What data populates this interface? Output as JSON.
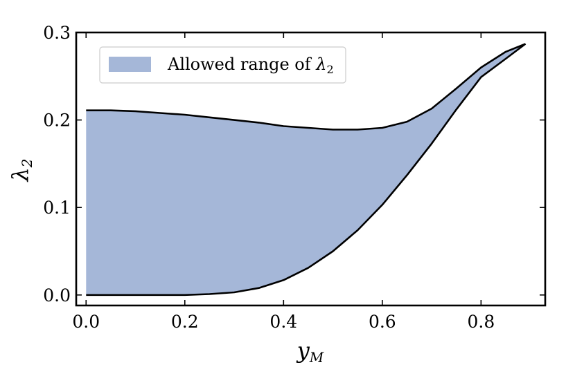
{
  "chart_data": {
    "type": "area",
    "x": [
      0.0,
      0.05,
      0.1,
      0.15,
      0.2,
      0.25,
      0.3,
      0.35,
      0.4,
      0.45,
      0.5,
      0.55,
      0.6,
      0.65,
      0.7,
      0.75,
      0.8,
      0.85,
      0.89
    ],
    "series": [
      {
        "name": "Allowed range of λ2",
        "lower": [
          0.0,
          0.0,
          0.0,
          0.0,
          0.0,
          0.001,
          0.003,
          0.008,
          0.017,
          0.031,
          0.05,
          0.074,
          0.103,
          0.137,
          0.173,
          0.212,
          0.249,
          0.27,
          0.287
        ],
        "upper": [
          0.211,
          0.211,
          0.21,
          0.208,
          0.206,
          0.203,
          0.2,
          0.197,
          0.193,
          0.191,
          0.189,
          0.189,
          0.191,
          0.198,
          0.213,
          0.236,
          0.26,
          0.278,
          0.287
        ],
        "color": "#a5b7d8"
      }
    ],
    "xlabel": "y",
    "xlabel_sub": "M",
    "ylabel": "λ",
    "ylabel_sub": "2",
    "xlim": [
      -0.02,
      0.93
    ],
    "ylim": [
      -0.012,
      0.3
    ],
    "xticks": [
      0.0,
      0.2,
      0.4,
      0.6,
      0.8
    ],
    "xtick_labels": [
      "0.0",
      "0.2",
      "0.4",
      "0.6",
      "0.8"
    ],
    "yticks": [
      0.0,
      0.1,
      0.2,
      0.3
    ],
    "ytick_labels": [
      "0.0",
      "0.1",
      "0.2",
      "0.3"
    ],
    "grid": false,
    "legend": {
      "position": "upper-left",
      "label_text": "Allowed range of ",
      "label_symbol": "λ",
      "label_sub": "2"
    }
  }
}
